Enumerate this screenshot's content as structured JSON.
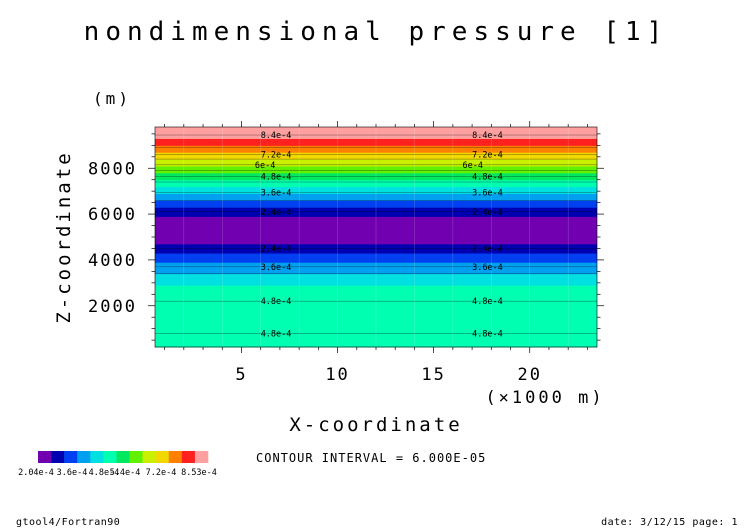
{
  "chart_data": {
    "type": "heatmap",
    "title": "nondimensional pressure [1]",
    "xlabel": "X-coordinate",
    "xunit": "(×1000 m)",
    "ylabel": "Z-coordinate",
    "yunit": "(m)",
    "xlim": [
      0.5,
      23.5
    ],
    "ylim": [
      200,
      9800
    ],
    "xticks": [
      5,
      10,
      15,
      20
    ],
    "yticks": [
      2000,
      4000,
      6000,
      8000
    ],
    "contour_interval_text": "CONTOUR INTERVAL = 6.000E-05",
    "colorbar": {
      "colors": [
        "#7000b0",
        "#0000b0",
        "#0040f0",
        "#00a0f0",
        "#00e0e0",
        "#00ffb0",
        "#00e860",
        "#60f000",
        "#c8f000",
        "#f0d800",
        "#ff8000",
        "#ff2020",
        "#ffa0a0"
      ],
      "labels": [
        "2.04e-4",
        "3.6e-4",
        "4.8e-4",
        "5.4e-4",
        "7.2e-4",
        "8.53e-4"
      ]
    },
    "bands": [
      {
        "z0": 200,
        "z1": 900,
        "value": 0.00045,
        "color": "#00ffb0"
      },
      {
        "z0": 900,
        "z1": 2900,
        "value": 0.0005,
        "color": "#00ffb0"
      },
      {
        "z0": 2900,
        "z1": 3400,
        "value": 0.00045,
        "color": "#00e0e0"
      },
      {
        "z0": 3400,
        "z1": 3900,
        "value": 0.00039,
        "color": "#00a0f0"
      },
      {
        "z0": 3900,
        "z1": 4300,
        "value": 0.00033,
        "color": "#0040f0"
      },
      {
        "z0": 4300,
        "z1": 4700,
        "value": 0.00027,
        "color": "#0000b0"
      },
      {
        "z0": 4700,
        "z1": 5900,
        "value": 0.00021,
        "color": "#7000b0"
      },
      {
        "z0": 5900,
        "z1": 6300,
        "value": 0.00027,
        "color": "#0000b0"
      },
      {
        "z0": 6300,
        "z1": 6600,
        "value": 0.00033,
        "color": "#0040f0"
      },
      {
        "z0": 6600,
        "z1": 6900,
        "value": 0.00039,
        "color": "#00a0f0"
      },
      {
        "z0": 6900,
        "z1": 7200,
        "value": 0.00045,
        "color": "#00e0e0"
      },
      {
        "z0": 7200,
        "z1": 7500,
        "value": 0.00051,
        "color": "#00ffb0"
      },
      {
        "z0": 7500,
        "z1": 7800,
        "value": 0.00057,
        "color": "#00e860"
      },
      {
        "z0": 7800,
        "z1": 8100,
        "value": 0.00063,
        "color": "#60f000"
      },
      {
        "z0": 8100,
        "z1": 8400,
        "value": 0.00069,
        "color": "#c8f000"
      },
      {
        "z0": 8400,
        "z1": 8700,
        "value": 0.00075,
        "color": "#f0d800"
      },
      {
        "z0": 8700,
        "z1": 9000,
        "value": 0.00079,
        "color": "#ff8000"
      },
      {
        "z0": 9000,
        "z1": 9300,
        "value": 0.00083,
        "color": "#ff2020"
      },
      {
        "z0": 9300,
        "z1": 9800,
        "value": 0.000853,
        "color": "#ffa0a0"
      }
    ],
    "contour_labels": [
      {
        "text": "8.4e-4",
        "z": 9450,
        "x": [
          6.0,
          17.0
        ]
      },
      {
        "text": "7.2e-4",
        "z": 8600,
        "x": [
          6.0,
          17.0
        ]
      },
      {
        "text": "6e-4",
        "z": 8150,
        "x": [
          5.7,
          16.5
        ]
      },
      {
        "text": "4.8e-4",
        "z": 7650,
        "x": [
          6.0,
          17.0
        ]
      },
      {
        "text": "3.6e-4",
        "z": 6950,
        "x": [
          6.0,
          17.0
        ]
      },
      {
        "text": "2.4e-4",
        "z": 6100,
        "x": [
          6.0,
          17.0
        ]
      },
      {
        "text": "2.4e-4",
        "z": 4500,
        "x": [
          6.0,
          17.0
        ]
      },
      {
        "text": "3.6e-4",
        "z": 3700,
        "x": [
          6.0,
          17.0
        ]
      },
      {
        "text": "4.8e-4",
        "z": 2200,
        "x": [
          6.0,
          17.0
        ]
      },
      {
        "text": "4.8e-4",
        "z": 800,
        "x": [
          6.0,
          17.0
        ]
      }
    ],
    "contour_lines_z": [
      800,
      2200,
      3400,
      3700,
      4500,
      6100,
      6600,
      6950,
      7400,
      7650,
      7900,
      8150,
      8400,
      8600,
      8900,
      9450
    ]
  },
  "footer": {
    "left": "gtool4/Fortran90",
    "right": "date: 3/12/15 page: 1"
  }
}
